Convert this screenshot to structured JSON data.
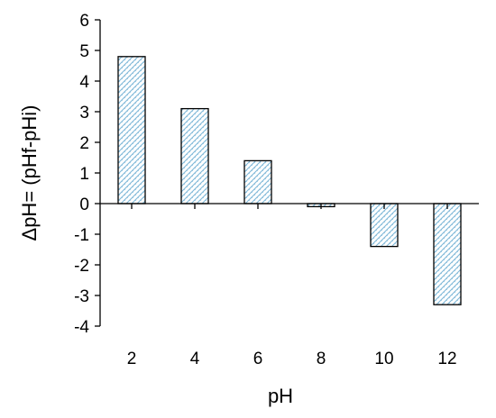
{
  "chart_data": {
    "type": "bar",
    "categories": [
      "2",
      "4",
      "6",
      "8",
      "10",
      "12"
    ],
    "values": [
      4.8,
      3.1,
      1.4,
      -0.1,
      -1.4,
      -3.3
    ],
    "title": "",
    "xlabel": "pH",
    "ylabel": "ΔpH= (pHf-pHi)",
    "ylim": [
      -4,
      6
    ],
    "yticks": [
      "-4",
      "-3",
      "-2",
      "-1",
      "0",
      "1",
      "2",
      "3",
      "4",
      "5",
      "6"
    ],
    "grid": false,
    "legend": "none",
    "bar_fill": "hatched light blue (#7fb8d8 diagonal pattern on white)",
    "colors": {
      "hatch": "#7fb8d8",
      "outline": "#000000"
    }
  }
}
